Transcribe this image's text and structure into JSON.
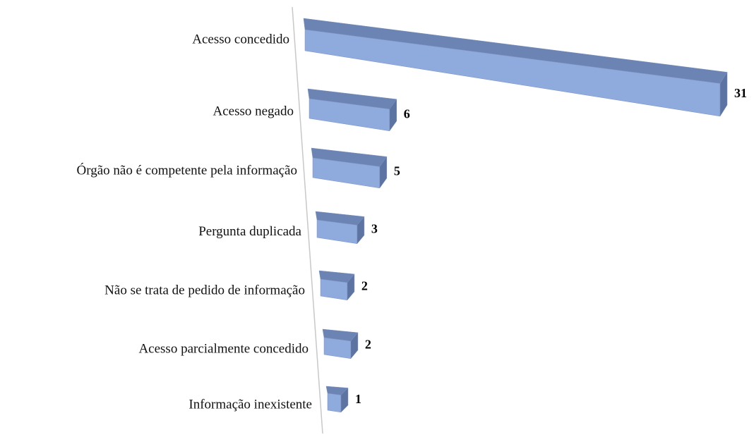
{
  "chart_data": {
    "type": "bar3d",
    "categories": [
      "Acesso concedido",
      "Acesso negado",
      "Órgão não é competente pela informação",
      "Pergunta duplicada",
      "Não se trata de pedido de informação",
      "Acesso parcialmente concedido",
      "Informação inexistente"
    ],
    "values": [
      31,
      6,
      5,
      3,
      2,
      2,
      1
    ],
    "color": "#8faadc"
  }
}
